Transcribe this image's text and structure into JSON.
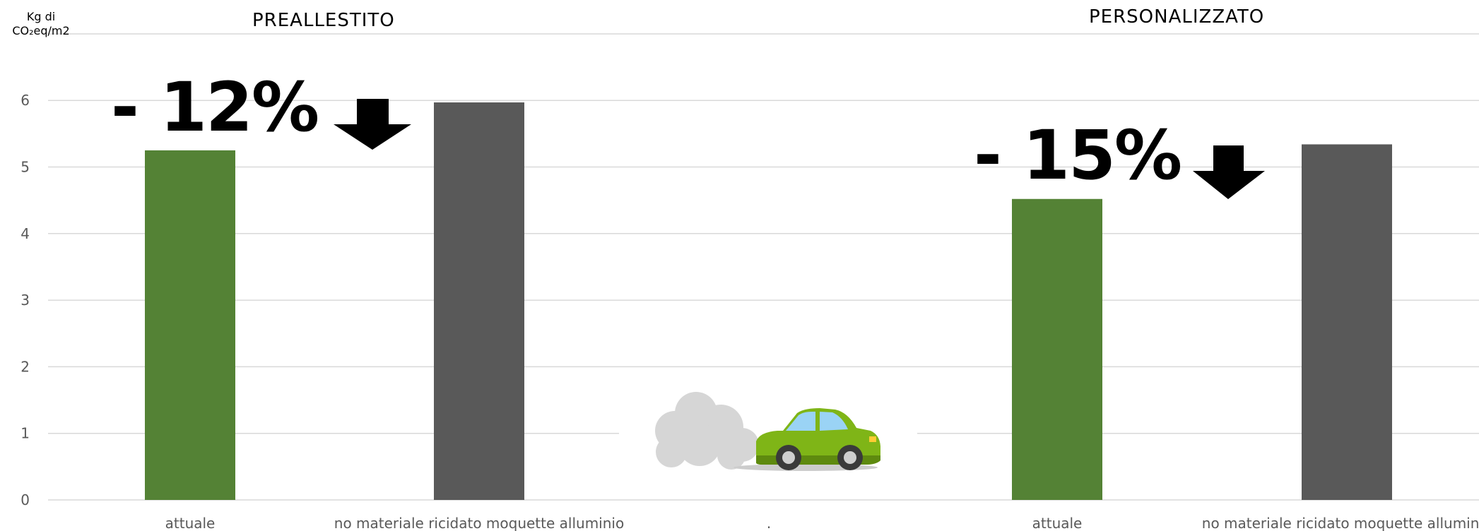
{
  "chart_data": {
    "type": "bar",
    "ylabel_line1": "Kg di",
    "ylabel_line2": "CO₂eq/m2",
    "yticks": [
      "0",
      "1",
      "2",
      "3",
      "4",
      "5",
      "6"
    ],
    "ylim": [
      0,
      6.5
    ],
    "grid": true,
    "categories": [
      "attuale",
      "no materiale ricidato moquette alluminio",
      ".",
      "attuale",
      "no materiale ricidato moquette alluminio"
    ],
    "values": [
      5.25,
      5.97,
      null,
      4.52,
      5.34
    ],
    "bar_colors": [
      "#548235",
      "#595959",
      null,
      "#548235",
      "#595959"
    ],
    "groups": [
      {
        "title": "PREALLESTITO",
        "reduction": "- 12%"
      },
      {
        "title": "PERSONALIZZATO",
        "reduction": "- 15%"
      }
    ]
  },
  "decorations": {
    "arrow_icon": "arrow-down-icon",
    "car_icon": "car-exhaust-icon"
  }
}
